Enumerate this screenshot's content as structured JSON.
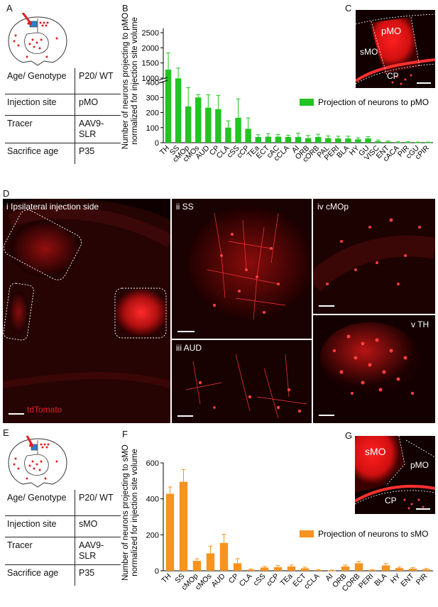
{
  "panels": {
    "A": "A",
    "B": "B",
    "C": "C",
    "D": "D",
    "E": "E",
    "F": "F",
    "G": "G"
  },
  "table_A": [
    {
      "key": "Age/ Genotype",
      "value": "P20/ WT"
    },
    {
      "key": "Injection site",
      "value": "pMO"
    },
    {
      "key": "Tracer",
      "value": "AAV9- SLR"
    },
    {
      "key": "Sacrifice age",
      "value": "P35"
    }
  ],
  "table_E": [
    {
      "key": "Age/ Genotype",
      "value": "P20/ WT"
    },
    {
      "key": "Injection site",
      "value": "sMO"
    },
    {
      "key": "Tracer",
      "value": "AAV9- SLR"
    },
    {
      "key": "Sacrifice age",
      "value": "P35"
    }
  ],
  "micro_C": {
    "pMO": "pMO",
    "sMO": "sMO",
    "CP": "CP"
  },
  "micro_G": {
    "sMO": "sMO",
    "pMO": "pMO",
    "CP": "CP"
  },
  "micro_D": {
    "i": "i Ipsilateral injection side",
    "ii": "ii SS",
    "iii": "iii AUD",
    "iv": "iv cMOp",
    "v": "v TH",
    "marker": "tdTomato"
  },
  "colors": {
    "green": "#22c322",
    "orange": "#f7931e",
    "tissue": "#e0201c"
  },
  "chart_data": [
    {
      "type": "bar",
      "panel": "B",
      "ylabel_line1": "Number of neurons projecting  to pMO",
      "ylabel_line2": "normalized for injection site volume",
      "legend": "Projection of neurons to pMO",
      "legend_position": "right",
      "axis_break": true,
      "yticks_lower": [
        0,
        100,
        200,
        300,
        400
      ],
      "yticks_upper": [
        1000,
        1500,
        2000,
        2500
      ],
      "categories": [
        "TH",
        "SS",
        "cMOp",
        "cMOs",
        "AUD",
        "CP",
        "CLA",
        "cSS",
        "cCP",
        "TEa",
        "ECT",
        "cAC",
        "cCLA",
        "AI",
        "ORB",
        "cORB",
        "PAL",
        "PERI",
        "BLA",
        "HY",
        "GU",
        "VISC",
        "ENT",
        "cACA",
        "PIR",
        "cGU",
        "cPIR"
      ],
      "values": [
        1280,
        950,
        240,
        300,
        232,
        222,
        100,
        165,
        92,
        38,
        40,
        40,
        38,
        38,
        30,
        38,
        30,
        28,
        28,
        22,
        28,
        10,
        6,
        3,
        3,
        2,
        2
      ],
      "errors": [
        550,
        380,
        125,
        155,
        85,
        92,
        45,
        125,
        72,
        15,
        20,
        15,
        12,
        25,
        18,
        18,
        15,
        15,
        15,
        10,
        12,
        8,
        5,
        3,
        3,
        2,
        2
      ]
    },
    {
      "type": "bar",
      "panel": "F",
      "ylabel_line1": "Number of neurons projecting  to sMO",
      "ylabel_line2": "normalized for injection site volume",
      "legend": "Projection of neurons to sMO",
      "legend_position": "right",
      "ylim": [
        0,
        600
      ],
      "yticks": [
        0,
        200,
        400,
        600
      ],
      "categories": [
        "TH",
        "SS",
        "cMOp",
        "cMOs",
        "AUD",
        "CP",
        "CLA",
        "cSS",
        "cCP",
        "TEa",
        "ECT",
        "cCLA",
        "AI",
        "ORB",
        "CORB",
        "PERI",
        "BLA",
        "HY",
        "ENT",
        "PIR"
      ],
      "values": [
        428,
        495,
        55,
        97,
        155,
        42,
        6,
        18,
        20,
        24,
        14,
        4,
        2,
        24,
        42,
        4,
        30,
        15,
        12,
        8
      ],
      "errors": [
        38,
        68,
        12,
        40,
        48,
        25,
        4,
        6,
        10,
        8,
        6,
        3,
        2,
        8,
        10,
        3,
        10,
        6,
        6,
        5
      ]
    }
  ]
}
